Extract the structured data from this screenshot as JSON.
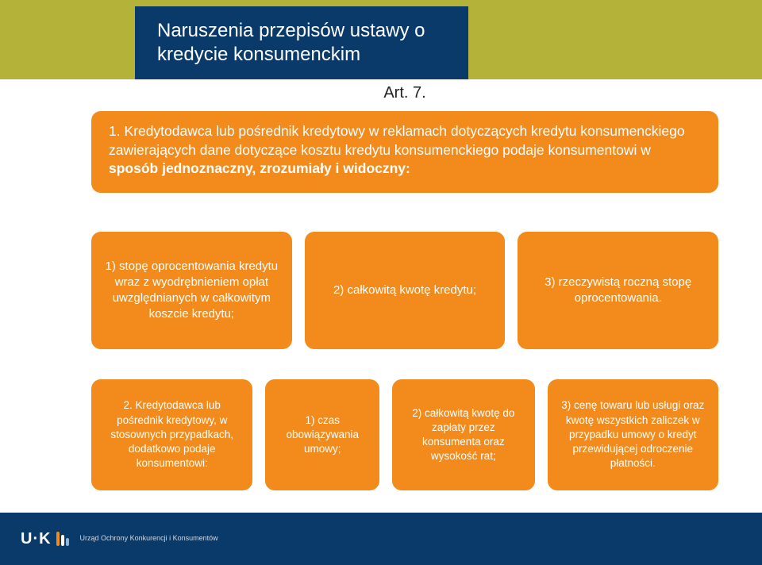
{
  "colors": {
    "navy": "#0a3a6a",
    "orange": "#f28b1c",
    "olive": "#b5b239",
    "white": "#ffffff",
    "text_dark": "#222222",
    "footer_text": "#cfd8e6"
  },
  "title": "Naruszenia przepisów ustawy o kredycie konsumenckim",
  "article": "Art. 7.",
  "main_text_prefix": "1. Kredytodawca lub pośrednik kredytowy w reklamach dotyczących kredytu konsumenckiego zawierających dane dotyczące kosztu kredytu konsumenckiego podaje konsumentowi w ",
  "main_text_bold": "sposób jednoznaczny, zrozumiały i widoczny:",
  "row1": [
    "1) stopę oprocentowania kredytu wraz z wyodrębnieniem opłat uwzględnianych w całkowitym koszcie kredytu;",
    "2) całkowitą kwotę kredytu;",
    "3) rzeczywistą roczną stopę oprocentowania."
  ],
  "row2": [
    "2. Kredytodawca lub pośrednik kredytowy, w stosownych przypadkach, dodatkowo podaje konsumentowi:",
    "1) czas obowiązywania umowy;",
    "2) całkowitą kwotę do zapłaty przez konsumenta oraz wysokość rat;",
    "3) cenę towaru lub usługi oraz kwotę wszystkich zaliczek w przypadku umowy o kredyt przewidującej odroczenie płatności."
  ],
  "logo": {
    "letters": "U·K",
    "subtitle": "Urząd Ochrony Konkurencji i Konsumentów",
    "bars": [
      {
        "color": "#f28b1c",
        "height": 18
      },
      {
        "color": "#ffffff",
        "height": 14
      },
      {
        "color": "#8fb4d9",
        "height": 10
      }
    ]
  }
}
